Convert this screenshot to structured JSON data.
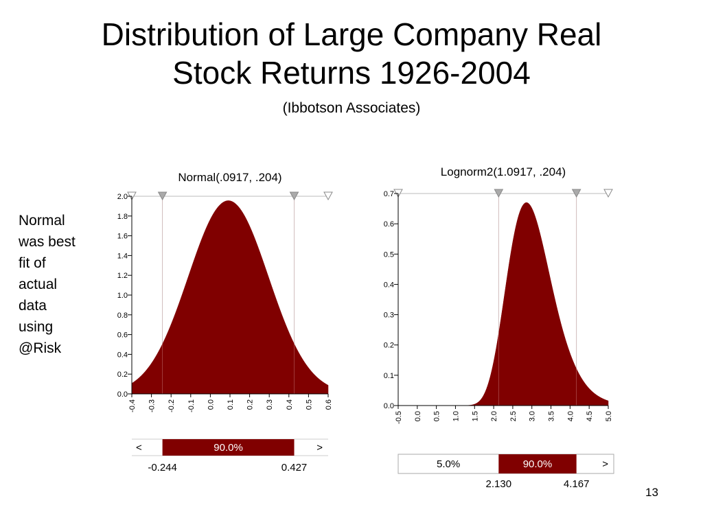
{
  "slide": {
    "title_line1": "Distribution of Large Company Real",
    "title_line2": "Stock Returns 1926-2004",
    "subtitle": "(Ibbotson Associates)",
    "side_note": [
      "Normal",
      "was best",
      "fit of",
      "actual",
      "data",
      "using",
      "@Risk"
    ],
    "page_number": "13"
  },
  "colors": {
    "fill": "#800000",
    "marker": "#aaaaaa",
    "line": "#cccccc"
  },
  "chart_data": [
    {
      "type": "area",
      "title": "Normal(.0917, .204)",
      "distribution": {
        "family": "normal",
        "mean": 0.0917,
        "sd": 0.204
      },
      "xlim": [
        -0.4,
        0.6
      ],
      "ylim": [
        0,
        2.0
      ],
      "x_ticks": [
        "-0.4",
        "-0.3",
        "-0.2",
        "-0.1",
        "0.0",
        "0.1",
        "0.2",
        "0.3",
        "0.4",
        "0.5",
        "0.6"
      ],
      "y_ticks": [
        "0.0",
        "0.2",
        "0.4",
        "0.6",
        "0.8",
        "1.0",
        "1.2",
        "1.4",
        "1.6",
        "1.8",
        "2.0"
      ],
      "markers": [
        -0.4,
        -0.244,
        0.427,
        0.6
      ],
      "range_bar": {
        "left_label": "<",
        "middle_label": "90.0%",
        "right_label": ">",
        "low": -0.244,
        "high": 0.427,
        "low_label": "-0.244",
        "high_label": "0.427"
      }
    },
    {
      "type": "area",
      "title": "Lognorm2(1.0917, .204)",
      "distribution": {
        "family": "lognormal",
        "mu": 1.0917,
        "sigma": 0.204
      },
      "xlim": [
        -0.5,
        5.0
      ],
      "ylim": [
        0,
        0.7
      ],
      "x_ticks": [
        "-0.5",
        "0.0",
        "0.5",
        "1.0",
        "1.5",
        "2.0",
        "2.5",
        "3.0",
        "3.5",
        "4.0",
        "4.5",
        "5.0"
      ],
      "y_ticks": [
        "0.0",
        "0.1",
        "0.2",
        "0.3",
        "0.4",
        "0.5",
        "0.6",
        "0.7"
      ],
      "markers": [
        -0.5,
        2.13,
        4.167,
        5.0
      ],
      "range_bar": {
        "left_label": "5.0%",
        "middle_label": "90.0%",
        "right_label": ">",
        "low": 2.13,
        "high": 4.167,
        "low_label": "2.130",
        "high_label": "4.167"
      }
    }
  ]
}
